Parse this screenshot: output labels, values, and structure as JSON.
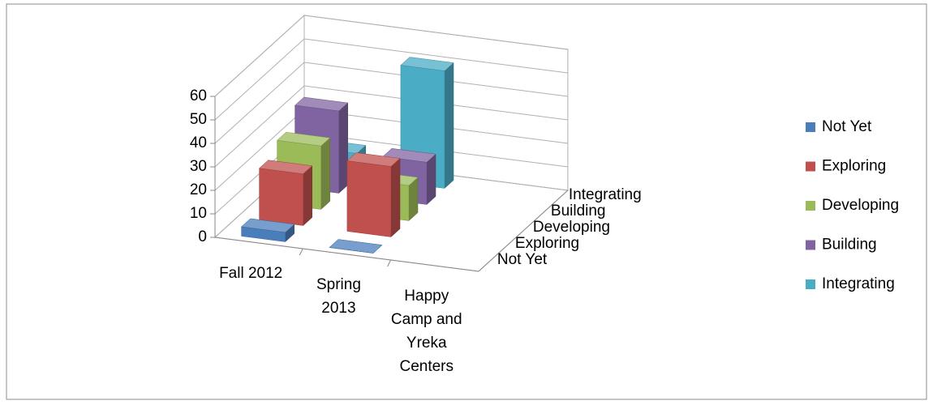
{
  "chart_data": {
    "type": "bar3d",
    "categories": [
      "Fall 2012",
      "Spring 2013",
      "Happy Camp and Yreka Centers"
    ],
    "series": [
      {
        "name": "Not Yet",
        "color": "#4a7ebb",
        "values": [
          4,
          0,
          null
        ]
      },
      {
        "name": "Exploring",
        "color": "#c0504d",
        "values": [
          22,
          30,
          null
        ]
      },
      {
        "name": "Developing",
        "color": "#9bbb59",
        "values": [
          27,
          15,
          null
        ]
      },
      {
        "name": "Building",
        "color": "#8064a2",
        "values": [
          35,
          18,
          null
        ]
      },
      {
        "name": "Integrating",
        "color": "#4bacc6",
        "values": [
          10,
          50,
          null
        ]
      }
    ],
    "ylim": [
      0,
      60
    ],
    "yticks": [
      0,
      10,
      20,
      30,
      40,
      50,
      60
    ],
    "grid": true,
    "legend": "right"
  }
}
